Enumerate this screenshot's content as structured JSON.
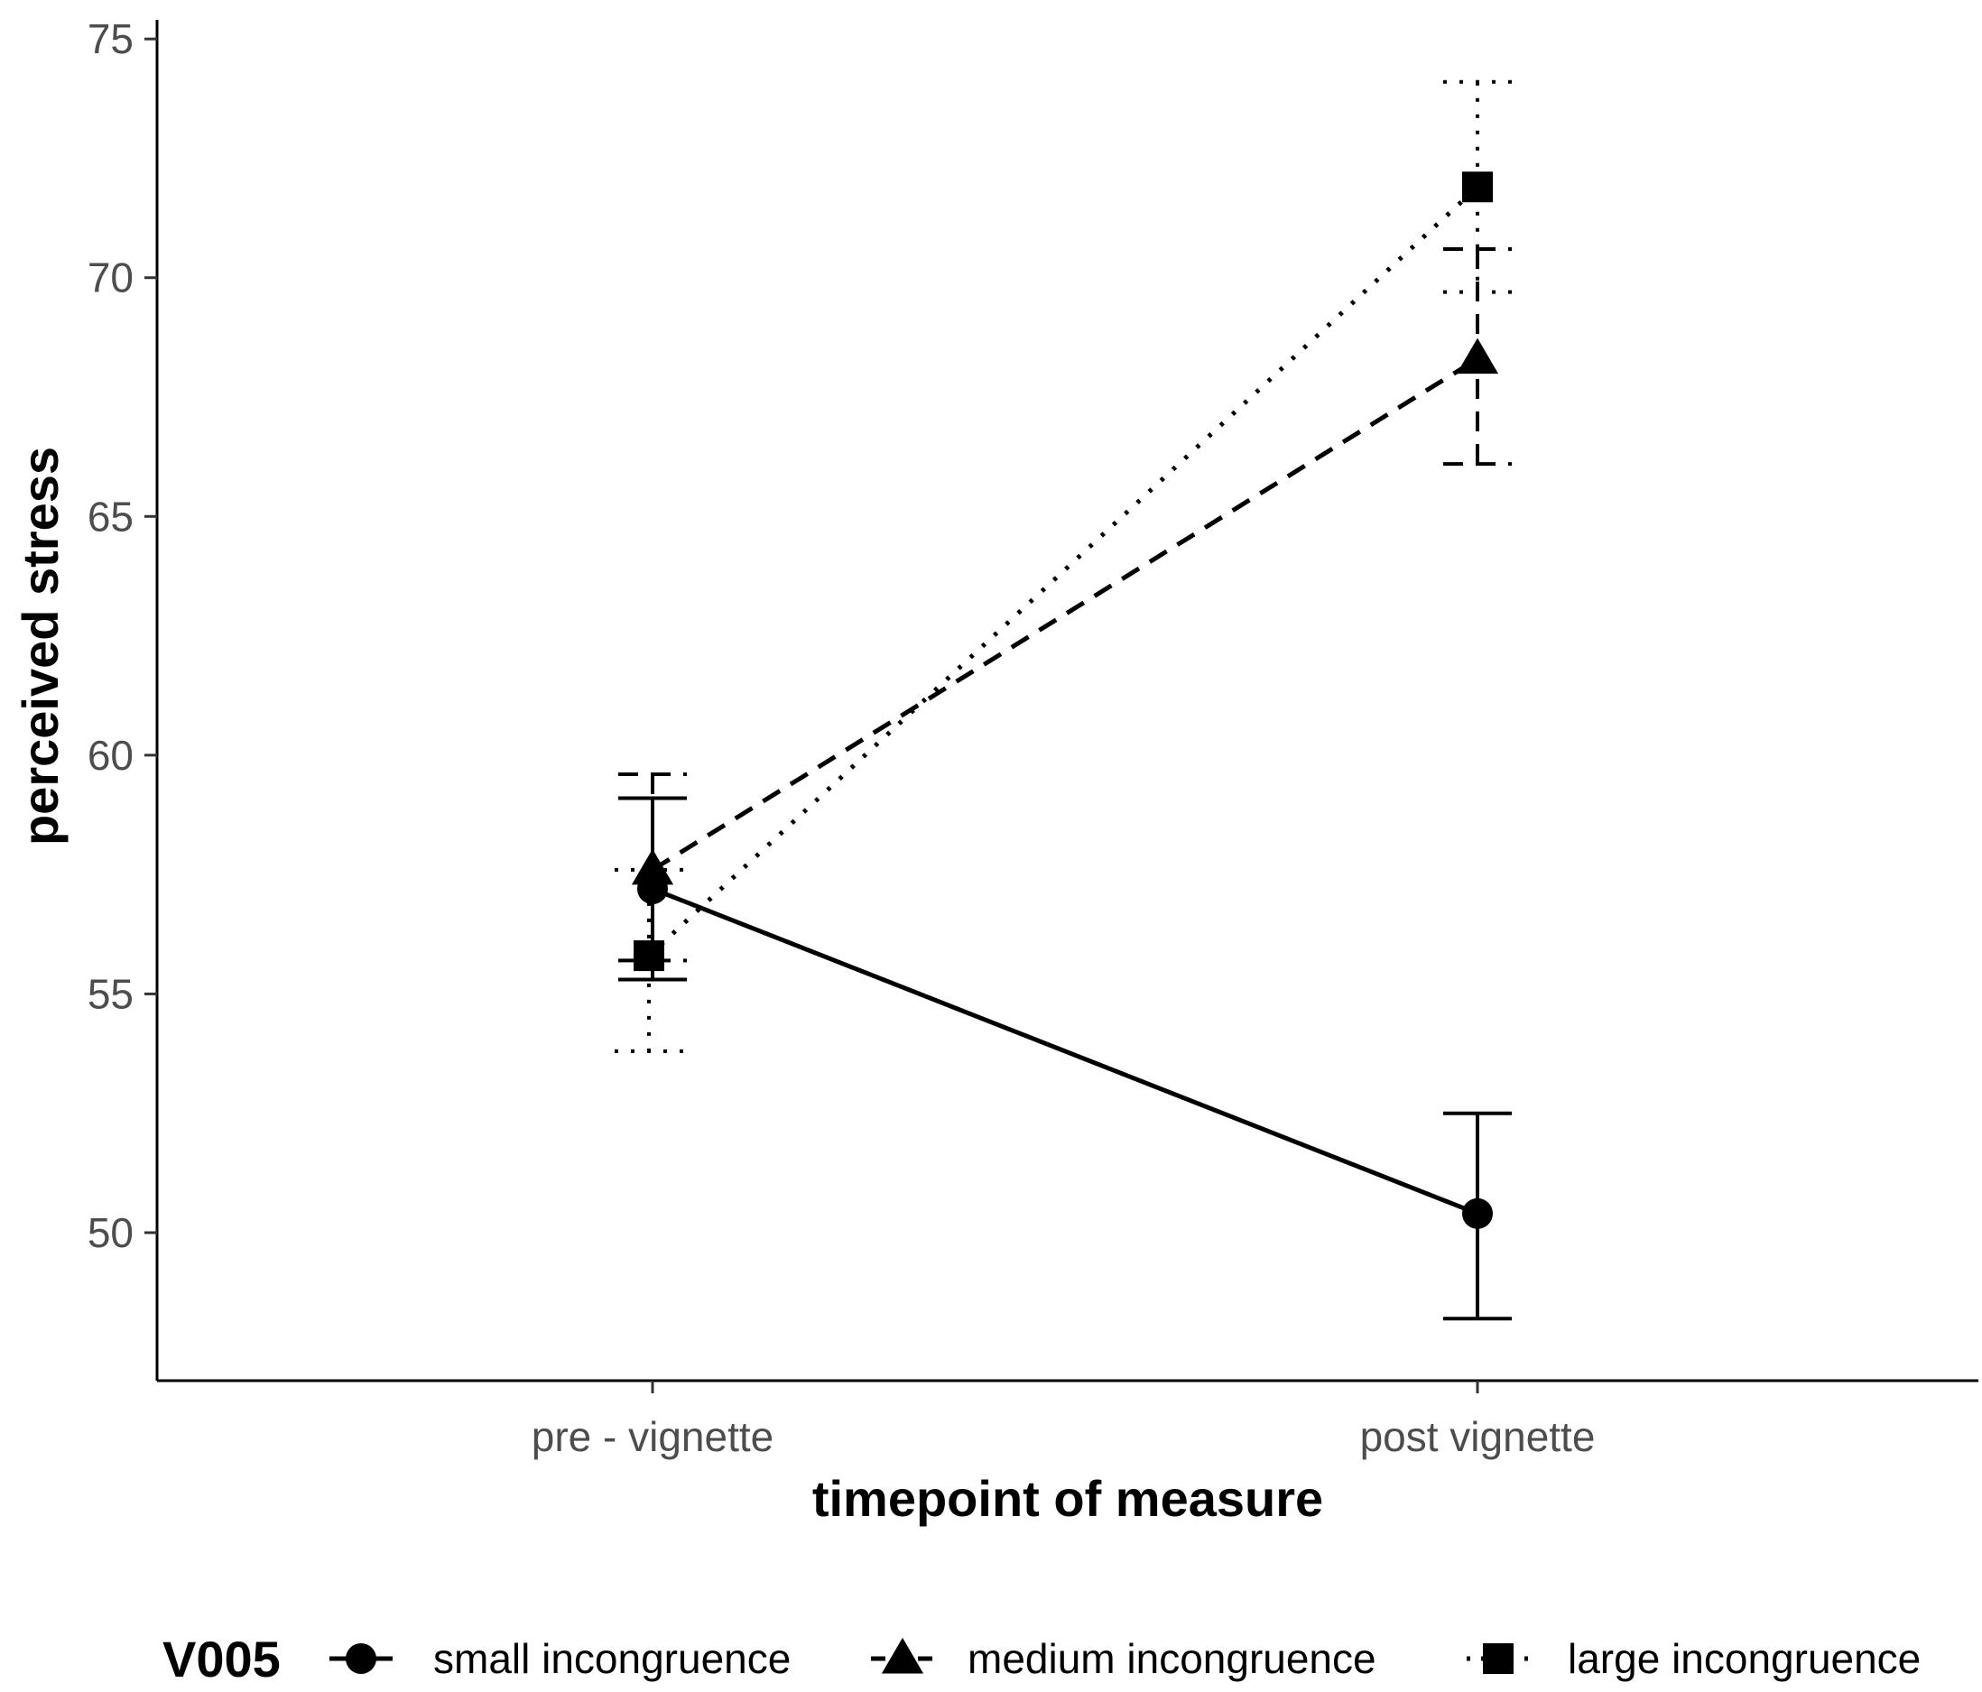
{
  "chart_data": {
    "type": "line",
    "title": "",
    "xlabel": "timepoint of measure",
    "ylabel": "perceived stress",
    "categories": [
      "pre - vignette",
      "post vignette"
    ],
    "ylim": [
      46.9,
      75.4
    ],
    "yticks": [
      50,
      55,
      60,
      65,
      70,
      75
    ],
    "grid": false,
    "legend": {
      "title": "V005",
      "position": "bottom"
    },
    "series": [
      {
        "name": "small incongruence",
        "marker": "circle",
        "linestyle": "solid",
        "values": [
          57.2,
          50.4
        ],
        "error_low": [
          55.3,
          48.2
        ],
        "error_high": [
          59.1,
          52.5
        ]
      },
      {
        "name": "medium incongruence",
        "marker": "triangle",
        "linestyle": "dashed",
        "values": [
          57.6,
          68.3
        ],
        "error_low": [
          55.7,
          66.1
        ],
        "error_high": [
          59.6,
          70.6
        ]
      },
      {
        "name": "large incongruence",
        "marker": "square",
        "linestyle": "dotted",
        "values": [
          55.8,
          71.9
        ],
        "error_low": [
          53.8,
          69.7
        ],
        "error_high": [
          57.6,
          74.1
        ]
      }
    ]
  }
}
